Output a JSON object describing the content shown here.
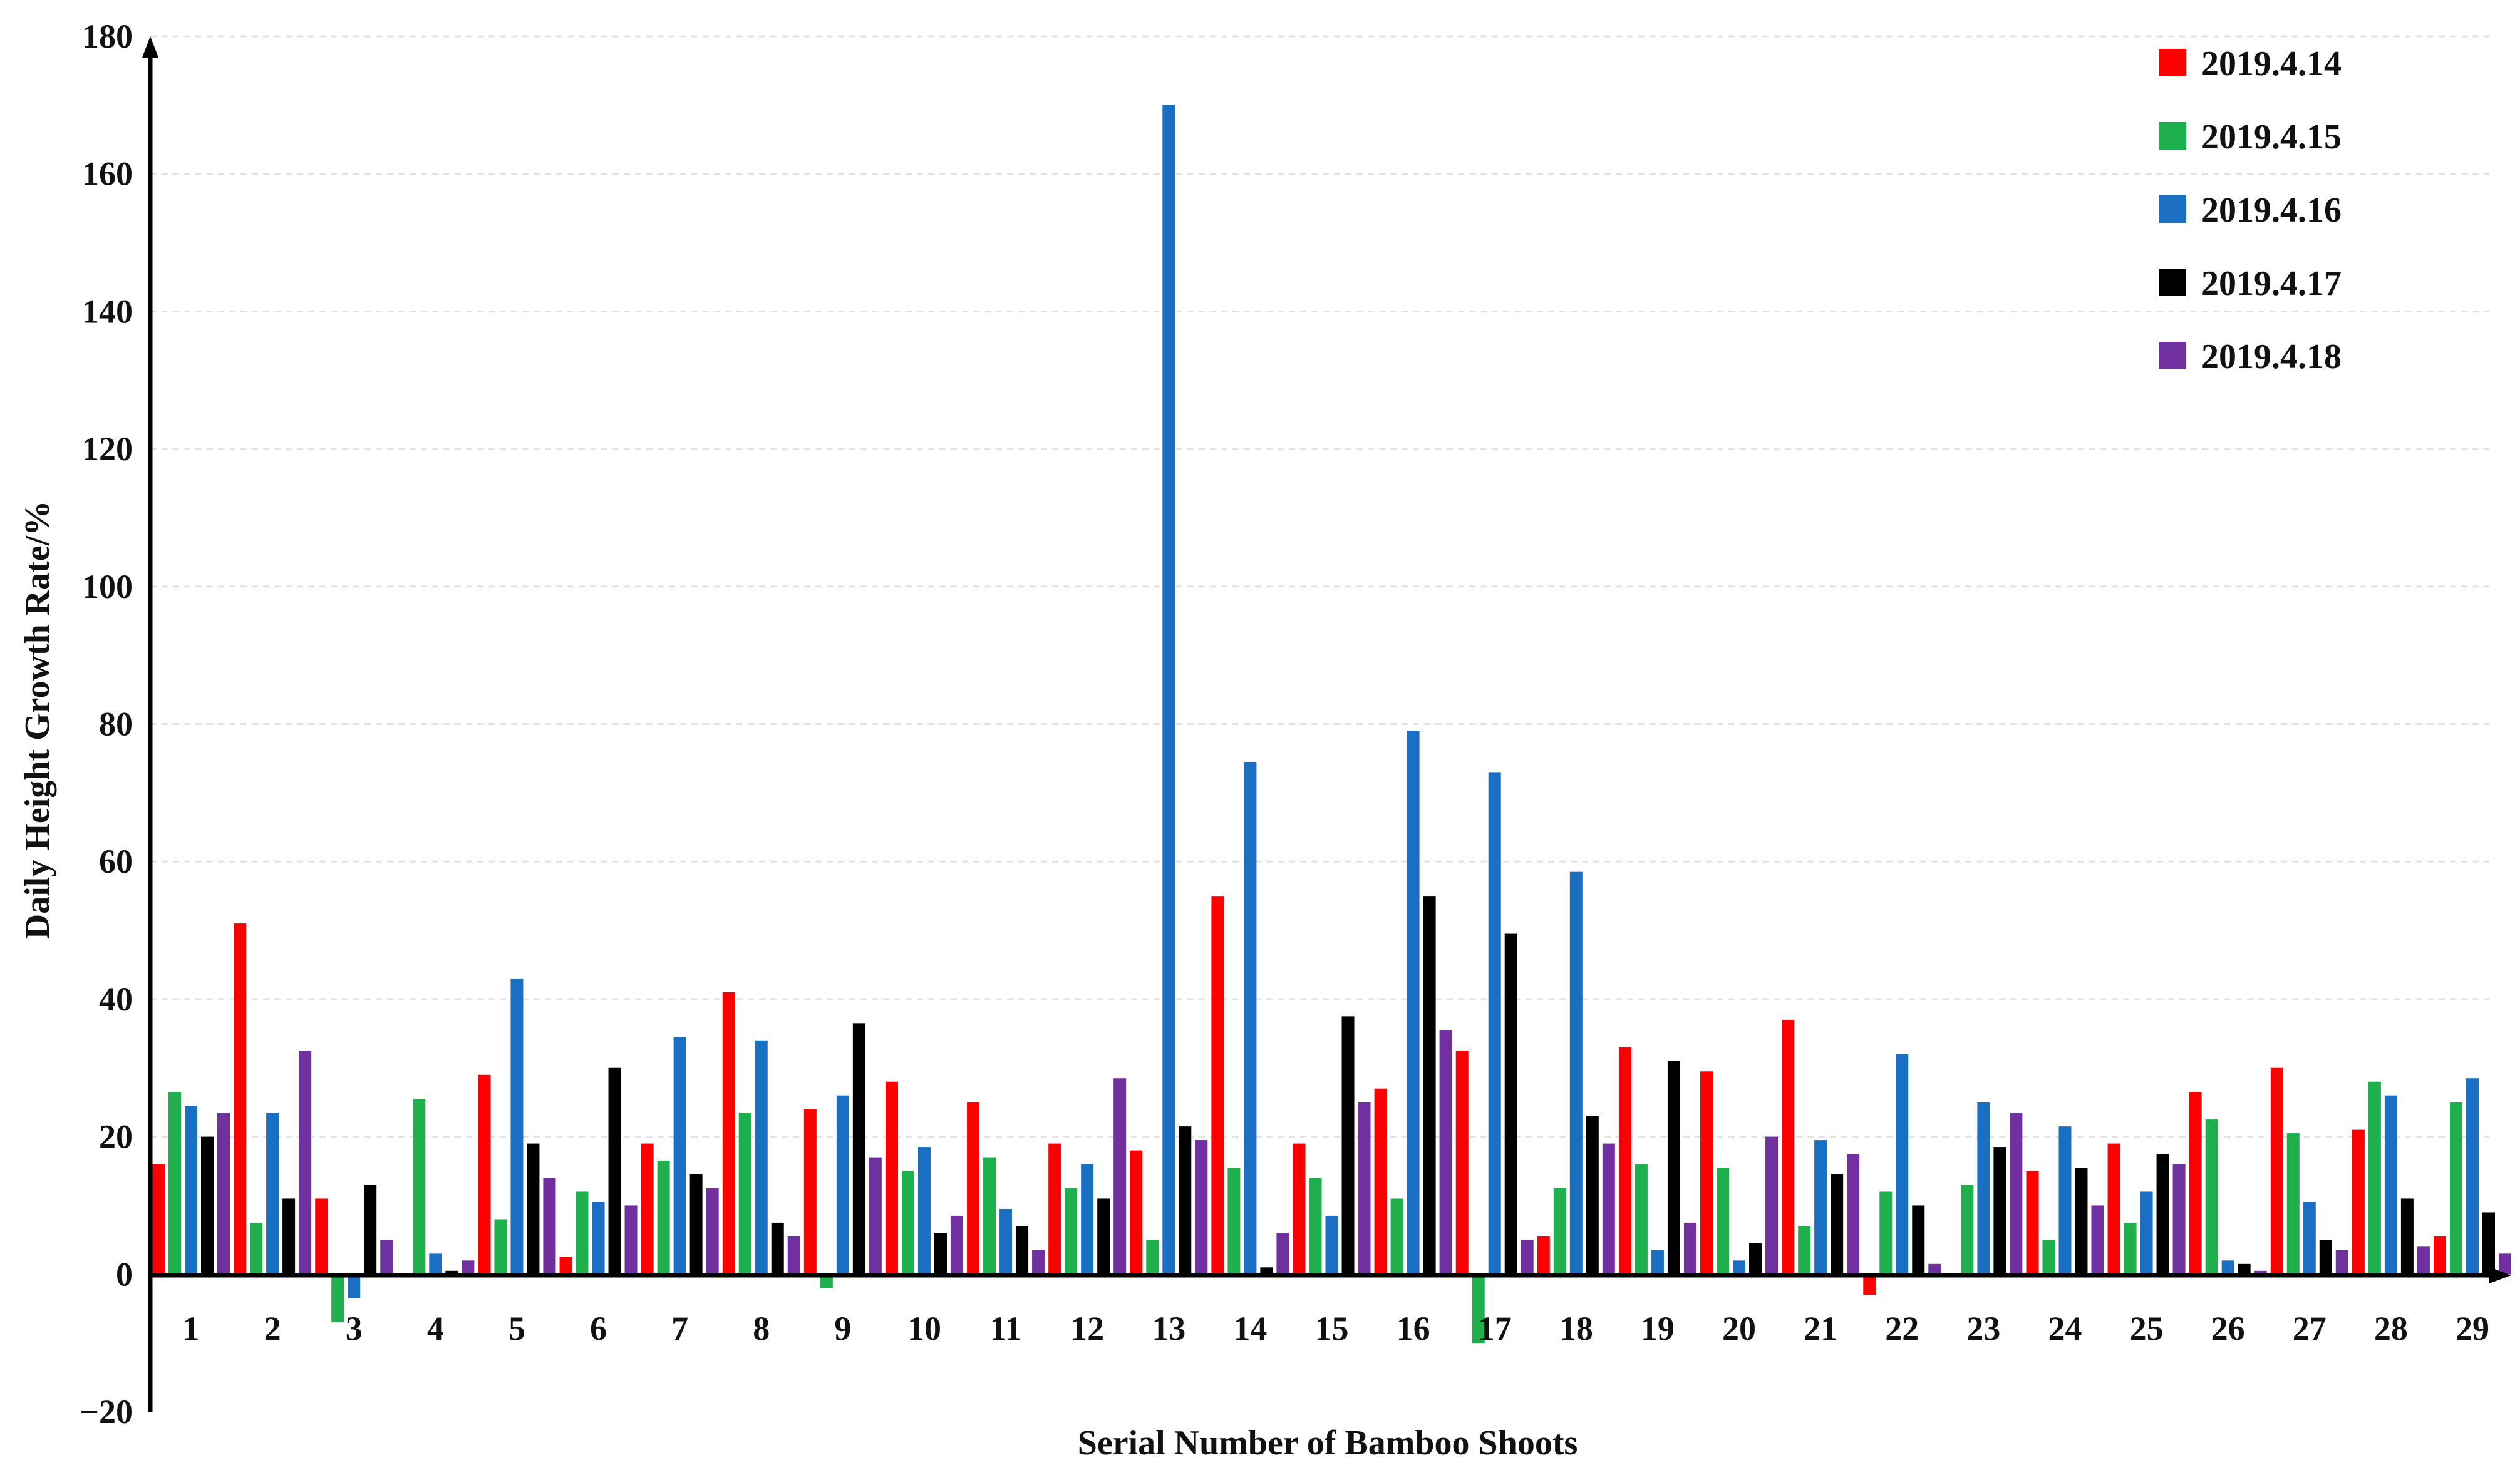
{
  "chart_data": {
    "type": "bar",
    "xlabel": "Serial Number of Bamboo Shoots",
    "ylabel": "Daily Height Growth Rate/%",
    "ylim": [
      -20,
      180
    ],
    "yticks": [
      "180",
      "160",
      "140",
      "120",
      "100",
      "80",
      "60",
      "40",
      "20",
      "0",
      "−20"
    ],
    "ytick_values": [
      180,
      160,
      140,
      120,
      100,
      80,
      60,
      40,
      20,
      0,
      -20
    ],
    "grid": true,
    "legend_position": "top-right",
    "categories": [
      "1",
      "2",
      "3",
      "4",
      "5",
      "6",
      "7",
      "8",
      "9",
      "10",
      "11",
      "12",
      "13",
      "14",
      "15",
      "16",
      "17",
      "18",
      "19",
      "20",
      "21",
      "22",
      "23",
      "24",
      "25",
      "26",
      "27",
      "28",
      "29"
    ],
    "series": [
      {
        "name": "2019.4.14",
        "color": "#ff0000",
        "values": [
          16,
          51,
          11,
          0,
          29,
          2.5,
          19,
          41,
          24,
          28,
          25,
          19,
          18,
          55,
          19,
          27,
          32.5,
          5.5,
          33,
          29.5,
          37,
          -3,
          0,
          15,
          19,
          26.5,
          30,
          21,
          5.5
        ]
      },
      {
        "name": "2019.4.15",
        "color": "#1fb04d",
        "values": [
          26.5,
          7.5,
          -7,
          25.5,
          8,
          12,
          16.5,
          23.5,
          -2,
          15,
          17,
          12.5,
          5,
          15.5,
          14,
          11,
          -10,
          12.5,
          16,
          15.5,
          7,
          12,
          13,
          5,
          7.5,
          22.5,
          20.5,
          28,
          25
        ]
      },
      {
        "name": "2019.4.16",
        "color": "#1a6fc2",
        "values": [
          24.5,
          23.5,
          -3.5,
          3,
          43,
          10.5,
          34.5,
          34,
          26,
          18.5,
          9.5,
          16,
          170,
          74.5,
          8.5,
          79,
          73,
          58.5,
          3.5,
          2,
          19.5,
          32,
          25,
          21.5,
          12,
          2,
          10.5,
          26,
          28.5
        ]
      },
      {
        "name": "2019.4.17",
        "color": "#000000",
        "values": [
          20,
          11,
          13,
          0.5,
          19,
          30,
          14.5,
          7.5,
          36.5,
          6,
          7,
          11,
          21.5,
          1,
          37.5,
          55,
          49.5,
          23,
          31,
          4.5,
          14.5,
          10,
          18.5,
          15.5,
          17.5,
          1.5,
          5,
          11,
          9
        ]
      },
      {
        "name": "2019.4.18",
        "color": "#7030a0",
        "values": [
          23.5,
          32.5,
          5,
          2,
          14,
          10,
          12.5,
          5.5,
          17,
          8.5,
          3.5,
          28.5,
          19.5,
          6,
          25,
          35.5,
          5,
          19,
          7.5,
          20,
          17.5,
          1.5,
          23.5,
          10,
          16,
          0.5,
          3.5,
          4,
          3
        ]
      }
    ]
  }
}
